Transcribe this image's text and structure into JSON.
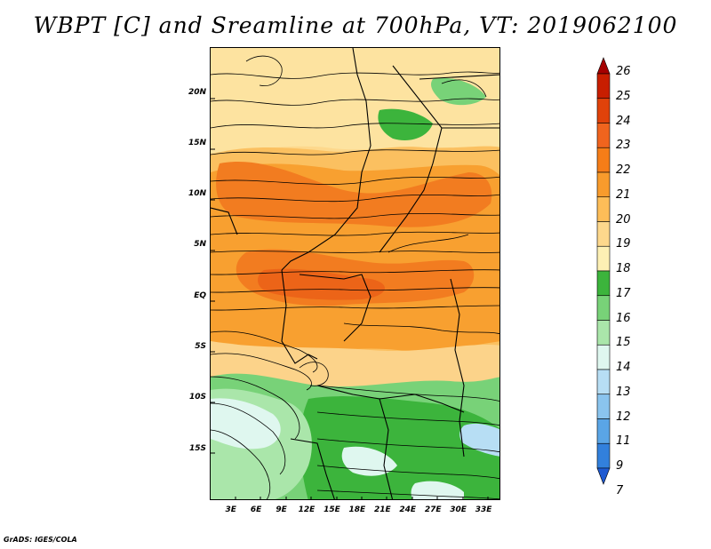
{
  "title": "WBPT [C] and Sreamline at 700hPa, VT: 2019062100",
  "credit": "GrADS: IGES/COLA",
  "map": {
    "lat_labels": [
      "20N",
      "15N",
      "10N",
      "5N",
      "EQ",
      "5S",
      "10S",
      "15S"
    ],
    "lat_values": [
      20,
      15,
      10,
      5,
      0,
      -5,
      -10,
      -15
    ],
    "lon_labels": [
      "3E",
      "6E",
      "9E",
      "12E",
      "15E",
      "18E",
      "21E",
      "24E",
      "27E",
      "30E",
      "33E"
    ],
    "lon_values": [
      3,
      6,
      9,
      12,
      15,
      18,
      21,
      24,
      27,
      30,
      33
    ],
    "lon_range": [
      0.5,
      35
    ],
    "lat_range": [
      -20,
      24.5
    ]
  },
  "colorbar": {
    "labels": [
      "26",
      "25",
      "24",
      "23",
      "22",
      "21",
      "20",
      "19",
      "18",
      "17",
      "16",
      "15",
      "14",
      "13",
      "12",
      "11",
      "9",
      "7"
    ],
    "colors": [
      "#a50000",
      "#c81e00",
      "#e0420a",
      "#f0641e",
      "#f57d18",
      "#f89b2c",
      "#fdbd58",
      "#fdd88c",
      "#fdf0b4",
      "#3cb43c",
      "#78d278",
      "#aae6aa",
      "#dff7ef",
      "#b7def4",
      "#8ac4ee",
      "#5aa5e6",
      "#3280dc",
      "#1e5ad2"
    ]
  }
}
